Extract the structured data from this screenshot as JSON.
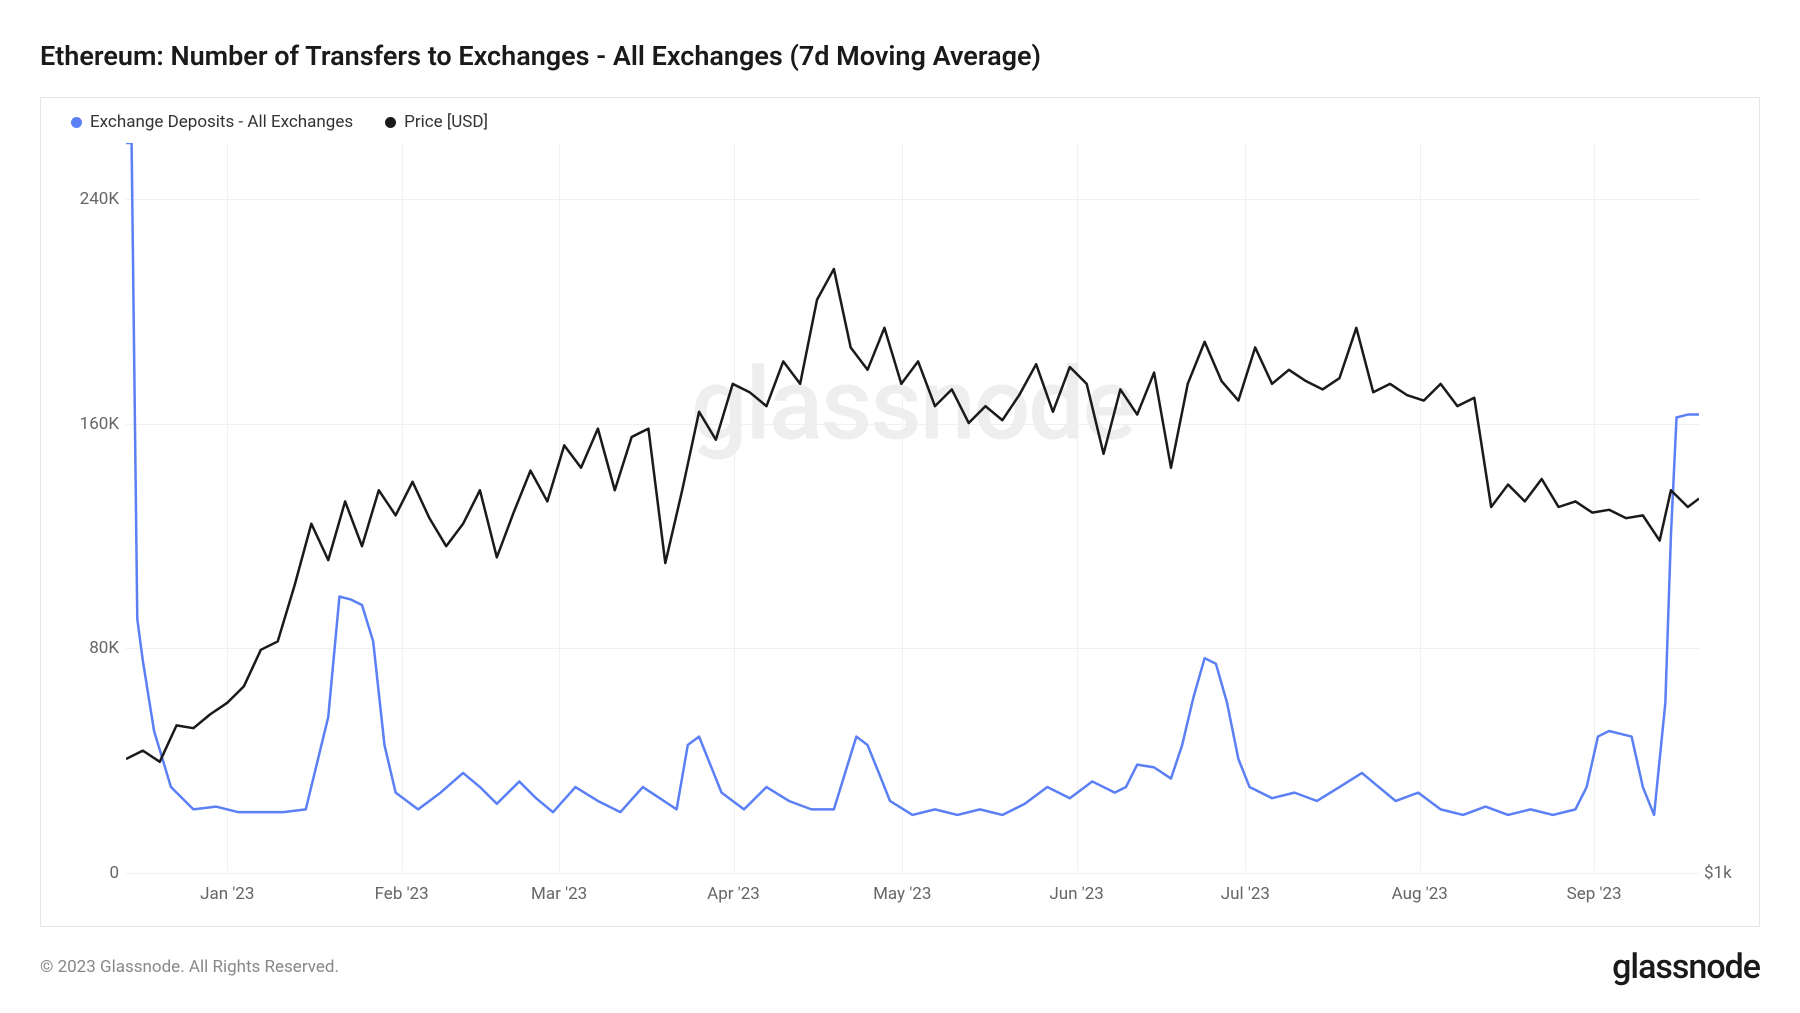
{
  "title": "Ethereum: Number of Transfers to Exchanges - All Exchanges (7d Moving Average)",
  "watermark": "glassnode",
  "copyright": "© 2023 Glassnode. All Rights Reserved.",
  "brand": "glassnode",
  "legend": {
    "series1": {
      "label": "Exchange Deposits - All Exchanges",
      "color": "#5b7ff5"
    },
    "series2": {
      "label": "Price [USD]",
      "color": "#1a1a1a"
    }
  },
  "chart": {
    "type": "line",
    "background_color": "#ffffff",
    "border_color": "#e5e5e5",
    "grid_color": "#f0f0f0",
    "line_width": 2.5,
    "y_axis_left": {
      "min": 0,
      "max": 260000,
      "ticks": [
        {
          "value": 0,
          "label": "0"
        },
        {
          "value": 80000,
          "label": "80K"
        },
        {
          "value": 160000,
          "label": "160K"
        },
        {
          "value": 240000,
          "label": "240K"
        }
      ]
    },
    "y_axis_right": {
      "min": 1000,
      "max": 2300,
      "ticks": [
        {
          "value": 1000,
          "label": "$1k"
        }
      ]
    },
    "x_axis": {
      "min": 0,
      "max": 280,
      "ticks": [
        {
          "value": 18,
          "label": "Jan '23"
        },
        {
          "value": 49,
          "label": "Feb '23"
        },
        {
          "value": 77,
          "label": "Mar '23"
        },
        {
          "value": 108,
          "label": "Apr '23"
        },
        {
          "value": 138,
          "label": "May '23"
        },
        {
          "value": 169,
          "label": "Jun '23"
        },
        {
          "value": 199,
          "label": "Jul '23"
        },
        {
          "value": 230,
          "label": "Aug '23"
        },
        {
          "value": 261,
          "label": "Sep '23"
        }
      ]
    },
    "series_deposits": {
      "color": "#5b7ff5",
      "data": [
        [
          0,
          260000
        ],
        [
          1,
          260000
        ],
        [
          2,
          90000
        ],
        [
          3,
          75000
        ],
        [
          5,
          50000
        ],
        [
          8,
          30000
        ],
        [
          12,
          22000
        ],
        [
          16,
          23000
        ],
        [
          20,
          21000
        ],
        [
          24,
          21000
        ],
        [
          28,
          21000
        ],
        [
          32,
          22000
        ],
        [
          36,
          55000
        ],
        [
          38,
          98000
        ],
        [
          40,
          97000
        ],
        [
          42,
          95000
        ],
        [
          44,
          82000
        ],
        [
          46,
          45000
        ],
        [
          48,
          28000
        ],
        [
          52,
          22000
        ],
        [
          56,
          28000
        ],
        [
          60,
          35000
        ],
        [
          63,
          30000
        ],
        [
          66,
          24000
        ],
        [
          70,
          32000
        ],
        [
          73,
          26000
        ],
        [
          76,
          21000
        ],
        [
          80,
          30000
        ],
        [
          84,
          25000
        ],
        [
          88,
          21000
        ],
        [
          92,
          30000
        ],
        [
          95,
          26000
        ],
        [
          98,
          22000
        ],
        [
          100,
          45000
        ],
        [
          102,
          48000
        ],
        [
          104,
          38000
        ],
        [
          106,
          28000
        ],
        [
          110,
          22000
        ],
        [
          114,
          30000
        ],
        [
          118,
          25000
        ],
        [
          122,
          22000
        ],
        [
          126,
          22000
        ],
        [
          128,
          35000
        ],
        [
          130,
          48000
        ],
        [
          132,
          45000
        ],
        [
          134,
          35000
        ],
        [
          136,
          25000
        ],
        [
          140,
          20000
        ],
        [
          144,
          22000
        ],
        [
          148,
          20000
        ],
        [
          152,
          22000
        ],
        [
          156,
          20000
        ],
        [
          160,
          24000
        ],
        [
          164,
          30000
        ],
        [
          168,
          26000
        ],
        [
          172,
          32000
        ],
        [
          176,
          28000
        ],
        [
          178,
          30000
        ],
        [
          180,
          38000
        ],
        [
          183,
          37000
        ],
        [
          186,
          33000
        ],
        [
          188,
          45000
        ],
        [
          190,
          62000
        ],
        [
          192,
          76000
        ],
        [
          194,
          74000
        ],
        [
          196,
          60000
        ],
        [
          198,
          40000
        ],
        [
          200,
          30000
        ],
        [
          204,
          26000
        ],
        [
          208,
          28000
        ],
        [
          212,
          25000
        ],
        [
          216,
          30000
        ],
        [
          220,
          35000
        ],
        [
          223,
          30000
        ],
        [
          226,
          25000
        ],
        [
          230,
          28000
        ],
        [
          234,
          22000
        ],
        [
          238,
          20000
        ],
        [
          242,
          23000
        ],
        [
          246,
          20000
        ],
        [
          250,
          22000
        ],
        [
          254,
          20000
        ],
        [
          258,
          22000
        ],
        [
          260,
          30000
        ],
        [
          262,
          48000
        ],
        [
          264,
          50000
        ],
        [
          266,
          49000
        ],
        [
          268,
          48000
        ],
        [
          270,
          30000
        ],
        [
          272,
          20000
        ],
        [
          274,
          60000
        ],
        [
          275,
          120000
        ],
        [
          276,
          162000
        ],
        [
          278,
          163000
        ],
        [
          280,
          163000
        ]
      ]
    },
    "series_price": {
      "color": "#1a1a1a",
      "data": [
        [
          0,
          1200
        ],
        [
          3,
          1215
        ],
        [
          6,
          1195
        ],
        [
          9,
          1260
        ],
        [
          12,
          1255
        ],
        [
          15,
          1280
        ],
        [
          18,
          1300
        ],
        [
          21,
          1330
        ],
        [
          24,
          1395
        ],
        [
          27,
          1410
        ],
        [
          30,
          1510
        ],
        [
          33,
          1620
        ],
        [
          36,
          1555
        ],
        [
          39,
          1660
        ],
        [
          42,
          1580
        ],
        [
          45,
          1680
        ],
        [
          48,
          1635
        ],
        [
          51,
          1695
        ],
        [
          54,
          1630
        ],
        [
          57,
          1580
        ],
        [
          60,
          1620
        ],
        [
          63,
          1680
        ],
        [
          66,
          1560
        ],
        [
          69,
          1640
        ],
        [
          72,
          1715
        ],
        [
          75,
          1660
        ],
        [
          78,
          1760
        ],
        [
          81,
          1720
        ],
        [
          84,
          1790
        ],
        [
          87,
          1680
        ],
        [
          90,
          1775
        ],
        [
          93,
          1790
        ],
        [
          96,
          1550
        ],
        [
          99,
          1680
        ],
        [
          102,
          1820
        ],
        [
          105,
          1770
        ],
        [
          108,
          1870
        ],
        [
          111,
          1855
        ],
        [
          114,
          1830
        ],
        [
          117,
          1910
        ],
        [
          120,
          1870
        ],
        [
          123,
          2020
        ],
        [
          126,
          2075
        ],
        [
          129,
          1935
        ],
        [
          132,
          1895
        ],
        [
          135,
          1970
        ],
        [
          138,
          1870
        ],
        [
          141,
          1910
        ],
        [
          144,
          1830
        ],
        [
          147,
          1860
        ],
        [
          150,
          1800
        ],
        [
          153,
          1830
        ],
        [
          156,
          1805
        ],
        [
          159,
          1850
        ],
        [
          162,
          1905
        ],
        [
          165,
          1820
        ],
        [
          168,
          1900
        ],
        [
          171,
          1870
        ],
        [
          174,
          1745
        ],
        [
          177,
          1860
        ],
        [
          180,
          1815
        ],
        [
          183,
          1890
        ],
        [
          186,
          1720
        ],
        [
          189,
          1870
        ],
        [
          192,
          1945
        ],
        [
          195,
          1875
        ],
        [
          198,
          1840
        ],
        [
          201,
          1935
        ],
        [
          204,
          1870
        ],
        [
          207,
          1895
        ],
        [
          210,
          1875
        ],
        [
          213,
          1860
        ],
        [
          216,
          1880
        ],
        [
          219,
          1970
        ],
        [
          222,
          1855
        ],
        [
          225,
          1870
        ],
        [
          228,
          1850
        ],
        [
          231,
          1840
        ],
        [
          234,
          1870
        ],
        [
          237,
          1830
        ],
        [
          240,
          1845
        ],
        [
          243,
          1650
        ],
        [
          246,
          1690
        ],
        [
          249,
          1660
        ],
        [
          252,
          1700
        ],
        [
          255,
          1650
        ],
        [
          258,
          1660
        ],
        [
          261,
          1640
        ],
        [
          264,
          1645
        ],
        [
          267,
          1630
        ],
        [
          270,
          1635
        ],
        [
          273,
          1590
        ],
        [
          275,
          1680
        ],
        [
          278,
          1650
        ],
        [
          280,
          1665
        ]
      ]
    }
  }
}
